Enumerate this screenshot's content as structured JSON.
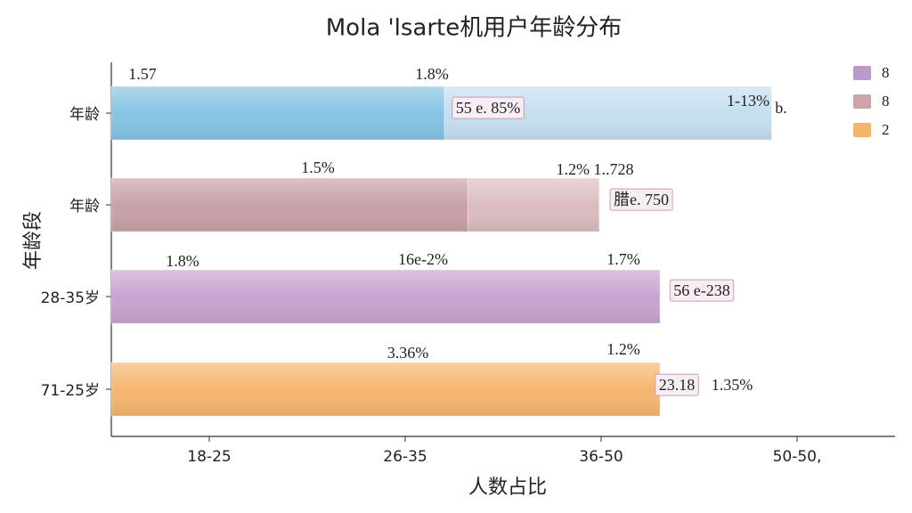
{
  "chart_data": {
    "type": "bar",
    "orientation": "horizontal",
    "title": "Mola 'lsarte机用户年龄分布",
    "x_label": "人数占比",
    "y_label": "年龄段",
    "categories": [
      "年龄",
      "年龄",
      "28-35岁",
      "71-25岁"
    ],
    "xlim": [
      0.5,
      4.5
    ],
    "xticks": [
      {
        "value": 1,
        "label": "18-25"
      },
      {
        "value": 2,
        "label": "26-35"
      },
      {
        "value": 3,
        "label": "36-50"
      },
      {
        "value": 4,
        "label": "50-50,"
      }
    ],
    "series": [
      {
        "colors": [
          "#86c3e3",
          "#c9a1a9",
          "#c8a3d0",
          "#f5b66f"
        ],
        "values": [
          1.7,
          1.82,
          2.8,
          2.8
        ]
      },
      {
        "colors": [
          "#c5dfef",
          "#dbbdc1",
          "#d9b9de",
          "#f7c58a"
        ],
        "values": [
          1.67,
          0.67,
          0,
          0
        ]
      }
    ],
    "annotations": [
      [
        "1.57",
        "1.8%",
        "55 e. 85%",
        "1-13%",
        "b."
      ],
      [
        "1.5%",
        "1.2% 1..728",
        "腊e. 750"
      ],
      [
        "1.8%",
        "16e-2%",
        "1.7%",
        "56 e-238"
      ],
      [
        "3.36%",
        "1.2%",
        "23.18",
        "1.35%"
      ]
    ],
    "legend": [
      {
        "name": "8",
        "color": "#b99ac9"
      },
      {
        "name": "8",
        "color": "#cba5ab"
      },
      {
        "name": "2",
        "color": "#f2b56b"
      }
    ]
  }
}
